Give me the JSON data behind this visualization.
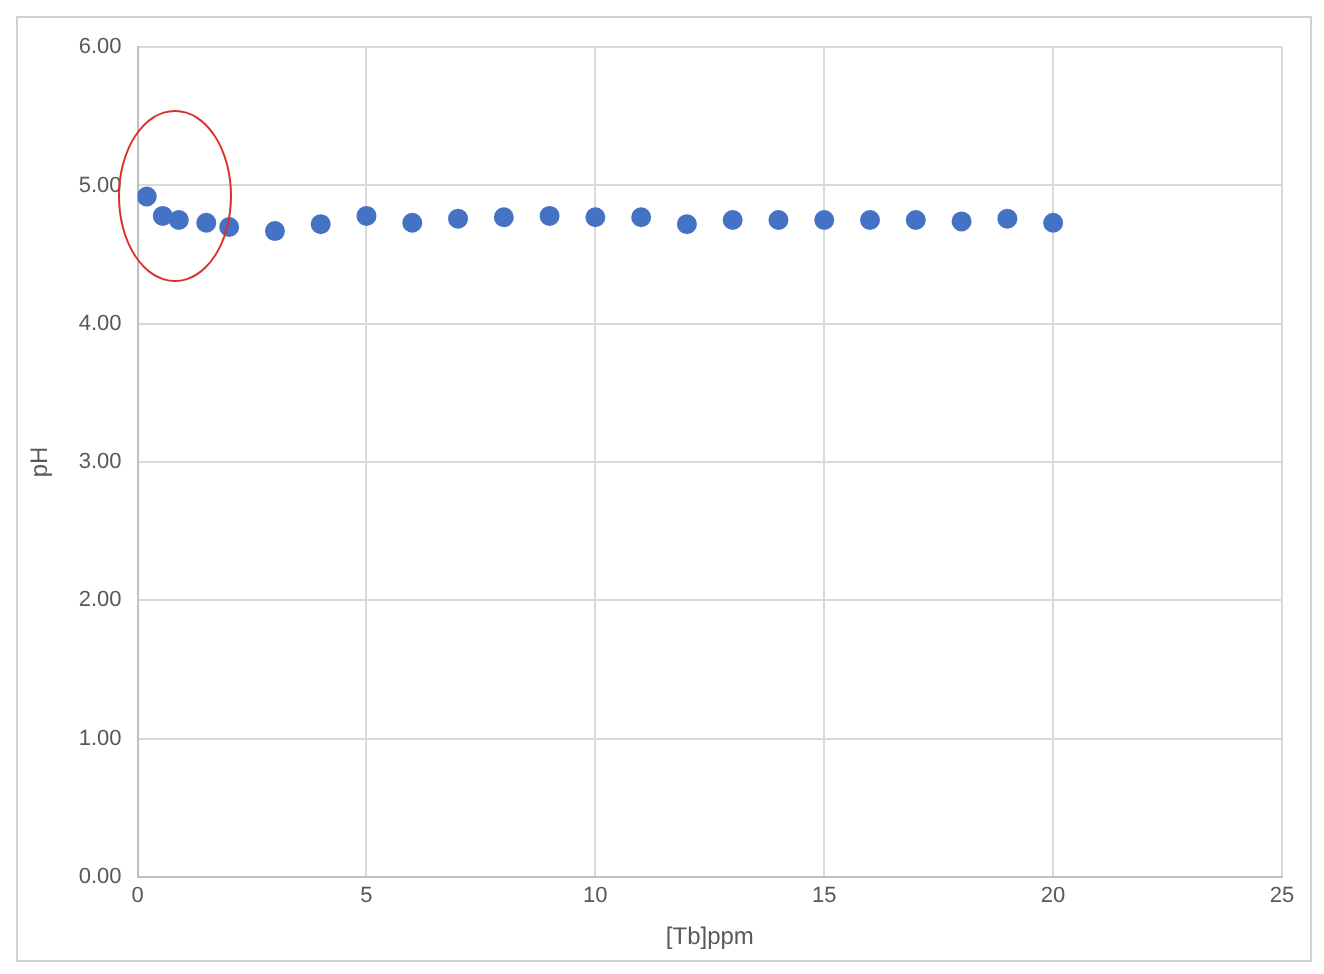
{
  "chart_data": {
    "type": "scatter",
    "xlabel": "[Tb]ppm",
    "ylabel": "pH",
    "x": [
      0.2,
      0.55,
      0.9,
      1.5,
      2,
      3,
      4,
      5,
      6,
      7,
      8,
      9,
      10,
      11,
      12,
      13,
      14,
      15,
      16,
      17,
      18,
      19,
      20
    ],
    "series": [
      {
        "color": "#4472c4",
        "values": [
          4.92,
          4.78,
          4.75,
          4.73,
          4.7,
          4.67,
          4.72,
          4.78,
          4.73,
          4.76,
          4.77,
          4.78,
          4.77,
          4.77,
          4.72,
          4.75,
          4.75,
          4.75,
          4.75,
          4.75,
          4.74,
          4.76,
          4.73
        ]
      }
    ],
    "xlim": [
      0,
      25
    ],
    "xticks": [
      0,
      5,
      10,
      15,
      20,
      25
    ],
    "ylim": [
      0,
      6
    ],
    "yticks": [
      {
        "value": 0,
        "label": "0.00"
      },
      {
        "value": 1,
        "label": "1.00"
      },
      {
        "value": 2,
        "label": "2.00"
      },
      {
        "value": 3,
        "label": "3.00"
      },
      {
        "value": 4,
        "label": "4.00"
      },
      {
        "value": 5,
        "label": "5.00"
      },
      {
        "value": 6,
        "label": "6.00"
      }
    ],
    "grid": true,
    "marker": "circle",
    "legend": false
  }
}
